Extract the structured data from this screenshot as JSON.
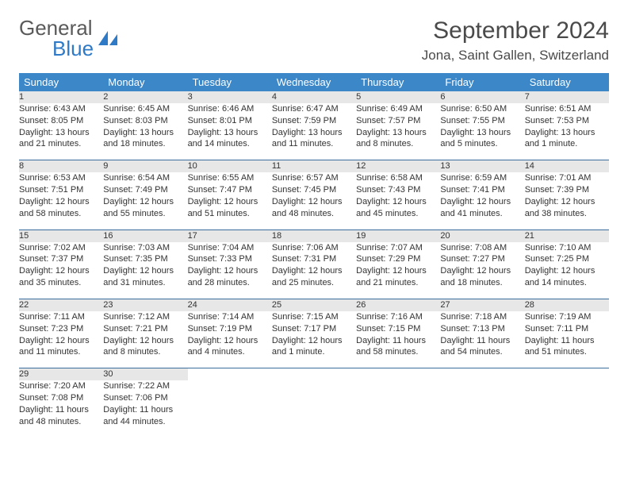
{
  "brand": {
    "part1": "General",
    "part2": "Blue"
  },
  "logo_color": "#2f7ac6",
  "title": "September 2024",
  "location": "Jona, Saint Gallen, Switzerland",
  "header_bg": "#3b87c8",
  "header_fg": "#ffffff",
  "daynum_bg": "#e7e7e7",
  "rule_color": "#3b6e9e",
  "day_headers": [
    "Sunday",
    "Monday",
    "Tuesday",
    "Wednesday",
    "Thursday",
    "Friday",
    "Saturday"
  ],
  "weeks": [
    [
      {
        "n": "1",
        "sr": "6:43 AM",
        "ss": "8:05 PM",
        "dl": "13 hours and 21 minutes."
      },
      {
        "n": "2",
        "sr": "6:45 AM",
        "ss": "8:03 PM",
        "dl": "13 hours and 18 minutes."
      },
      {
        "n": "3",
        "sr": "6:46 AM",
        "ss": "8:01 PM",
        "dl": "13 hours and 14 minutes."
      },
      {
        "n": "4",
        "sr": "6:47 AM",
        "ss": "7:59 PM",
        "dl": "13 hours and 11 minutes."
      },
      {
        "n": "5",
        "sr": "6:49 AM",
        "ss": "7:57 PM",
        "dl": "13 hours and 8 minutes."
      },
      {
        "n": "6",
        "sr": "6:50 AM",
        "ss": "7:55 PM",
        "dl": "13 hours and 5 minutes."
      },
      {
        "n": "7",
        "sr": "6:51 AM",
        "ss": "7:53 PM",
        "dl": "13 hours and 1 minute."
      }
    ],
    [
      {
        "n": "8",
        "sr": "6:53 AM",
        "ss": "7:51 PM",
        "dl": "12 hours and 58 minutes."
      },
      {
        "n": "9",
        "sr": "6:54 AM",
        "ss": "7:49 PM",
        "dl": "12 hours and 55 minutes."
      },
      {
        "n": "10",
        "sr": "6:55 AM",
        "ss": "7:47 PM",
        "dl": "12 hours and 51 minutes."
      },
      {
        "n": "11",
        "sr": "6:57 AM",
        "ss": "7:45 PM",
        "dl": "12 hours and 48 minutes."
      },
      {
        "n": "12",
        "sr": "6:58 AM",
        "ss": "7:43 PM",
        "dl": "12 hours and 45 minutes."
      },
      {
        "n": "13",
        "sr": "6:59 AM",
        "ss": "7:41 PM",
        "dl": "12 hours and 41 minutes."
      },
      {
        "n": "14",
        "sr": "7:01 AM",
        "ss": "7:39 PM",
        "dl": "12 hours and 38 minutes."
      }
    ],
    [
      {
        "n": "15",
        "sr": "7:02 AM",
        "ss": "7:37 PM",
        "dl": "12 hours and 35 minutes."
      },
      {
        "n": "16",
        "sr": "7:03 AM",
        "ss": "7:35 PM",
        "dl": "12 hours and 31 minutes."
      },
      {
        "n": "17",
        "sr": "7:04 AM",
        "ss": "7:33 PM",
        "dl": "12 hours and 28 minutes."
      },
      {
        "n": "18",
        "sr": "7:06 AM",
        "ss": "7:31 PM",
        "dl": "12 hours and 25 minutes."
      },
      {
        "n": "19",
        "sr": "7:07 AM",
        "ss": "7:29 PM",
        "dl": "12 hours and 21 minutes."
      },
      {
        "n": "20",
        "sr": "7:08 AM",
        "ss": "7:27 PM",
        "dl": "12 hours and 18 minutes."
      },
      {
        "n": "21",
        "sr": "7:10 AM",
        "ss": "7:25 PM",
        "dl": "12 hours and 14 minutes."
      }
    ],
    [
      {
        "n": "22",
        "sr": "7:11 AM",
        "ss": "7:23 PM",
        "dl": "12 hours and 11 minutes."
      },
      {
        "n": "23",
        "sr": "7:12 AM",
        "ss": "7:21 PM",
        "dl": "12 hours and 8 minutes."
      },
      {
        "n": "24",
        "sr": "7:14 AM",
        "ss": "7:19 PM",
        "dl": "12 hours and 4 minutes."
      },
      {
        "n": "25",
        "sr": "7:15 AM",
        "ss": "7:17 PM",
        "dl": "12 hours and 1 minute."
      },
      {
        "n": "26",
        "sr": "7:16 AM",
        "ss": "7:15 PM",
        "dl": "11 hours and 58 minutes."
      },
      {
        "n": "27",
        "sr": "7:18 AM",
        "ss": "7:13 PM",
        "dl": "11 hours and 54 minutes."
      },
      {
        "n": "28",
        "sr": "7:19 AM",
        "ss": "7:11 PM",
        "dl": "11 hours and 51 minutes."
      }
    ],
    [
      {
        "n": "29",
        "sr": "7:20 AM",
        "ss": "7:08 PM",
        "dl": "11 hours and 48 minutes."
      },
      {
        "n": "30",
        "sr": "7:22 AM",
        "ss": "7:06 PM",
        "dl": "11 hours and 44 minutes."
      },
      null,
      null,
      null,
      null,
      null
    ]
  ],
  "labels": {
    "sunrise": "Sunrise: ",
    "sunset": "Sunset: ",
    "daylight": "Daylight: "
  }
}
